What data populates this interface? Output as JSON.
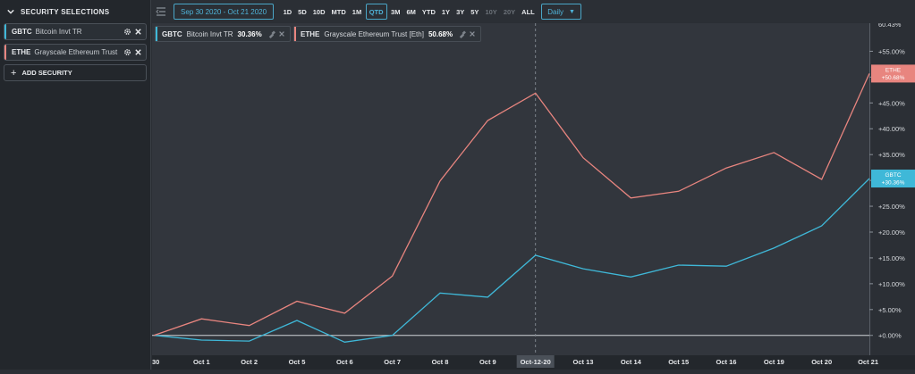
{
  "sidebar": {
    "title": "SECURITY SELECTIONS",
    "items": [
      {
        "ticker": "GBTC",
        "name": "Bitcoin Invt TR",
        "color": "#3fb8d8"
      },
      {
        "ticker": "ETHE",
        "name": "Grayscale Ethereum Trust ...",
        "color": "#e8857f"
      }
    ],
    "add_label": "ADD SECURITY"
  },
  "toolbar": {
    "date_range": "Sep 30 2020 - Oct 21 2020",
    "periods": [
      {
        "label": "1D",
        "state": "normal"
      },
      {
        "label": "5D",
        "state": "normal"
      },
      {
        "label": "10D",
        "state": "normal"
      },
      {
        "label": "MTD",
        "state": "normal"
      },
      {
        "label": "1M",
        "state": "normal"
      },
      {
        "label": "QTD",
        "state": "active"
      },
      {
        "label": "3M",
        "state": "normal"
      },
      {
        "label": "6M",
        "state": "normal"
      },
      {
        "label": "YTD",
        "state": "normal"
      },
      {
        "label": "1Y",
        "state": "normal"
      },
      {
        "label": "3Y",
        "state": "normal"
      },
      {
        "label": "5Y",
        "state": "normal"
      },
      {
        "label": "10Y",
        "state": "disabled"
      },
      {
        "label": "20Y",
        "state": "disabled"
      },
      {
        "label": "ALL",
        "state": "normal"
      }
    ],
    "frequency": "Daily"
  },
  "legend": [
    {
      "ticker": "GBTC",
      "name": "Bitcoin Invt TR",
      "value": "30.36%",
      "color": "#3fb8d8"
    },
    {
      "ticker": "ETHE",
      "name": "Grayscale Ethereum Trust [Eth]",
      "value": "50.68%",
      "color": "#e8857f"
    }
  ],
  "chart_data": {
    "type": "line",
    "x": [
      "Sep 30",
      "Oct 1",
      "Oct 2",
      "Oct 5",
      "Oct 6",
      "Oct 7",
      "Oct 8",
      "Oct 9",
      "Oct-12-20",
      "Oct 13",
      "Oct 14",
      "Oct 15",
      "Oct 16",
      "Oct 19",
      "Oct 20",
      "Oct 21"
    ],
    "x_tick_labels": [
      "30",
      "Oct 1",
      "Oct 2",
      "Oct 5",
      "Oct 6",
      "Oct 7",
      "Oct 8",
      "Oct 9",
      "Oct-12-20",
      "Oct 13",
      "Oct 14",
      "Oct 15",
      "Oct 16",
      "Oct 19",
      "Oct 20",
      "Oct 21"
    ],
    "highlight_x_index": 8,
    "series": [
      {
        "name": "GBTC",
        "color": "#3fb8d8",
        "badge_ticker": "GBTC",
        "badge_value": "+30.36%",
        "values": [
          0.0,
          -0.9,
          -1.1,
          2.9,
          -1.3,
          0.0,
          8.2,
          7.4,
          15.5,
          12.9,
          11.3,
          13.6,
          13.4,
          16.9,
          21.2,
          30.36
        ]
      },
      {
        "name": "ETHE",
        "color": "#e8857f",
        "badge_ticker": "ETHE",
        "badge_value": "+50.68%",
        "values": [
          0.0,
          3.2,
          1.9,
          6.6,
          4.3,
          11.5,
          29.9,
          41.6,
          46.9,
          34.4,
          26.6,
          27.9,
          32.4,
          35.4,
          30.2,
          50.68
        ]
      }
    ],
    "yticks": [
      0,
      5,
      10,
      15,
      20,
      25,
      30,
      35,
      40,
      45,
      50,
      55
    ],
    "ytick_labels": [
      "+0.00%",
      "+5.00%",
      "+10.00%",
      "+15.00%",
      "+20.00%",
      "+25.00%",
      "+30.00%",
      "+35.00%",
      "+40.00%",
      "+45.00%",
      "+50.00%",
      "+55.00%"
    ],
    "ymax_label": "60.43%",
    "ylim": [
      -3.5,
      60.43
    ],
    "grid": false
  }
}
